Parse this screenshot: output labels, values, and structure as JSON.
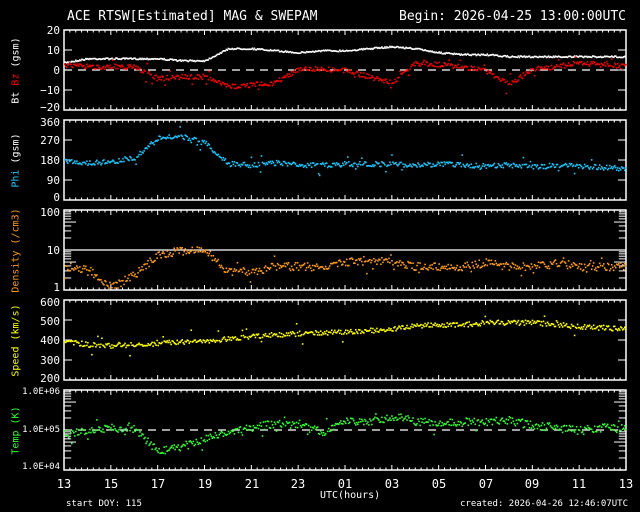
{
  "header": {
    "title": "ACE RTSW[Estimated] MAG & SWEPAM",
    "begin": "Begin: 2026-04-25 13:00:00UTC"
  },
  "footer": {
    "start_doy": "start DOY: 115",
    "created": "created: 2026-04-26 12:46:07UTC",
    "xlabel": "UTC(hours)"
  },
  "colors": {
    "background": "#000000",
    "axis": "#ffffff",
    "bt": "#ffffff",
    "bz": "#ff0000",
    "phi": "#1ec8ff",
    "density": "#ff9a1a",
    "speed": "#ffff00",
    "temp": "#33ff33"
  },
  "chart_data": [
    {
      "type": "scatter",
      "title": "ACE RTSW[Estimated] MAG & SWEPAM",
      "panel": "mag",
      "ylabel_parts": [
        "Bt",
        "Bz",
        "(gsm)"
      ],
      "xlabel": "UTC(hours)",
      "x": [
        13,
        14,
        15,
        16,
        17,
        18,
        19,
        20,
        21,
        22,
        23,
        24,
        25,
        26,
        27,
        28,
        29,
        30,
        31,
        32,
        33,
        34,
        35,
        36,
        37
      ],
      "ylim": [
        -20,
        20
      ],
      "yticks": [
        20,
        10,
        0,
        -10,
        -20
      ],
      "zero_line": "dashed",
      "series": [
        {
          "name": "Bt",
          "color": "#ffffff",
          "values": [
            4,
            6,
            6,
            6,
            6,
            5,
            5,
            11,
            11,
            10,
            9,
            10,
            10,
            11,
            12,
            11,
            9,
            8,
            8,
            7,
            7,
            7,
            7,
            7,
            7
          ]
        },
        {
          "name": "Bz",
          "color": "#ff0000",
          "values": [
            3,
            2,
            2,
            2,
            -4,
            -3,
            -3,
            -8,
            -7,
            -6,
            1,
            1,
            0,
            -3,
            -6,
            4,
            3,
            2,
            0,
            -7,
            1,
            2,
            4,
            3,
            2
          ]
        }
      ]
    },
    {
      "type": "scatter",
      "panel": "phi",
      "ylabel": "Phi (gsm)",
      "x": [
        13,
        14,
        15,
        16,
        17,
        18,
        19,
        20,
        21,
        22,
        23,
        24,
        25,
        26,
        27,
        28,
        29,
        30,
        31,
        32,
        33,
        34,
        35,
        36,
        37
      ],
      "ylim": [
        0,
        360
      ],
      "yticks": [
        360,
        270,
        180,
        90,
        0
      ],
      "series": [
        {
          "name": "Phi",
          "color": "#1ec8ff",
          "values": [
            180,
            170,
            175,
            195,
            280,
            290,
            260,
            165,
            160,
            170,
            160,
            160,
            165,
            165,
            165,
            160,
            165,
            160,
            155,
            160,
            150,
            160,
            155,
            150,
            145
          ]
        }
      ]
    },
    {
      "type": "scatter",
      "panel": "density",
      "ylabel": "Density (/cm3)",
      "x": [
        13,
        14,
        15,
        16,
        17,
        18,
        19,
        20,
        21,
        22,
        23,
        24,
        25,
        26,
        27,
        28,
        29,
        30,
        31,
        32,
        33,
        34,
        35,
        36,
        37
      ],
      "ylim": [
        1,
        100
      ],
      "yscale": "log",
      "yticks": [
        100,
        10,
        1
      ],
      "ref_line": 10,
      "series": [
        {
          "name": "Density",
          "color": "#ff9a1a",
          "values": [
            4,
            3.5,
            1.2,
            2.5,
            8,
            10,
            10,
            3,
            3,
            4,
            4,
            4,
            5,
            6,
            5,
            4,
            4,
            4,
            5,
            4,
            4,
            5,
            4,
            4,
            4
          ]
        }
      ]
    },
    {
      "type": "scatter",
      "panel": "speed",
      "ylabel": "Speed (km/s)",
      "x": [
        13,
        14,
        15,
        16,
        17,
        18,
        19,
        20,
        21,
        22,
        23,
        24,
        25,
        26,
        27,
        28,
        29,
        30,
        31,
        32,
        33,
        34,
        35,
        36,
        37
      ],
      "ylim": [
        200,
        600
      ],
      "yticks": [
        600,
        500,
        400,
        300,
        200
      ],
      "series": [
        {
          "name": "Speed",
          "color": "#ffff00",
          "values": [
            400,
            380,
            375,
            380,
            385,
            395,
            400,
            410,
            420,
            430,
            435,
            440,
            445,
            450,
            460,
            475,
            480,
            480,
            490,
            490,
            490,
            480,
            470,
            465,
            460
          ]
        }
      ]
    },
    {
      "type": "scatter",
      "panel": "temp",
      "ylabel": "Temp (K)",
      "x": [
        13,
        14,
        15,
        16,
        17,
        18,
        19,
        20,
        21,
        22,
        23,
        24,
        25,
        26,
        27,
        28,
        29,
        30,
        31,
        32,
        33,
        34,
        35,
        36,
        37
      ],
      "ylim": [
        10000,
        1000000
      ],
      "yscale": "log",
      "yticks": [
        "1.0E+06",
        "1.0E+05",
        "1.0E+04"
      ],
      "ref_line": 100000,
      "series": [
        {
          "name": "Temp",
          "color": "#33ff33",
          "values": [
            80000,
            100000,
            120000,
            110000,
            30000,
            40000,
            60000,
            90000,
            120000,
            150000,
            140000,
            90000,
            170000,
            160000,
            230000,
            170000,
            150000,
            160000,
            170000,
            180000,
            140000,
            120000,
            100000,
            120000,
            110000
          ]
        }
      ]
    }
  ],
  "xaxis": {
    "ticks": [
      "13",
      "15",
      "17",
      "19",
      "21",
      "23",
      "01",
      "03",
      "05",
      "07",
      "09",
      "11",
      "13"
    ]
  },
  "panels": [
    {
      "id": "mag",
      "ylabel_bt": "Bt",
      "ylabel_bz": "Bz",
      "ylabel_gsm": "(gsm)",
      "yticks": [
        "20",
        "10",
        "0",
        "−10",
        "−20"
      ]
    },
    {
      "id": "phi",
      "ylabel_a": "Phi",
      "ylabel_b": "(gsm)",
      "yticks": [
        "360",
        "270",
        "180",
        "90",
        "0"
      ]
    },
    {
      "id": "density",
      "ylabel_a": "Density",
      "ylabel_b": "(/cm3)",
      "yticks": [
        "100",
        "10",
        "1"
      ]
    },
    {
      "id": "speed",
      "ylabel_a": "Speed",
      "ylabel_b": "(km/s)",
      "yticks": [
        "600",
        "500",
        "400",
        "300",
        "200"
      ]
    },
    {
      "id": "temp",
      "ylabel_a": "Temp",
      "ylabel_b": "(K)",
      "yticks": [
        "1.0E+06",
        "1.0E+05",
        "1.0E+04"
      ]
    }
  ]
}
